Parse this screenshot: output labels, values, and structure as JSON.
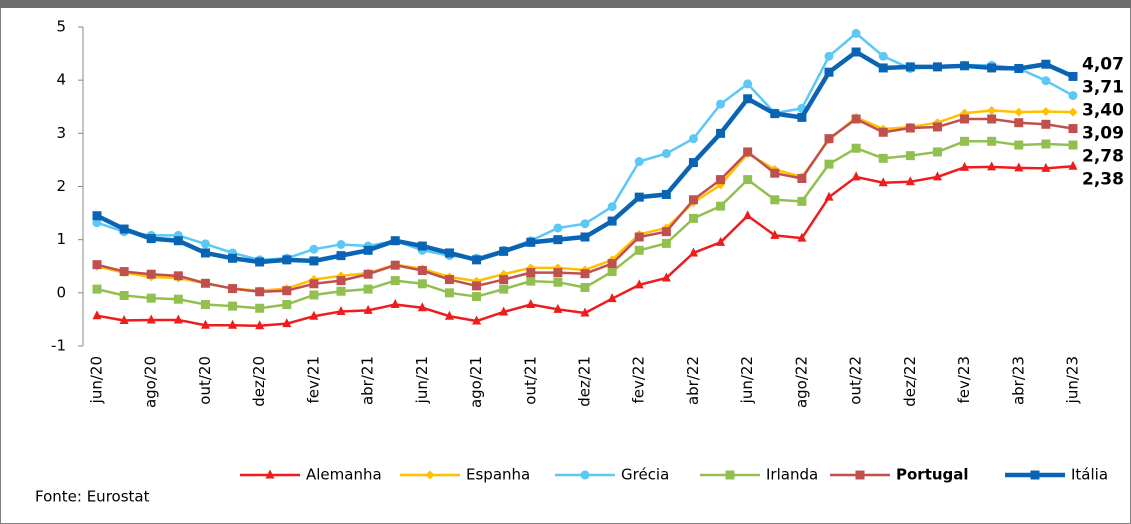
{
  "chart_data": {
    "type": "line",
    "source": "Fonte:  Eurostat",
    "categories": [
      "jun/20",
      null,
      "ago/20",
      null,
      "out/20",
      null,
      "dez/20",
      null,
      "fev/21",
      null,
      "abr/21",
      null,
      "jun/21",
      null,
      "ago/21",
      null,
      "out/21",
      null,
      "dez/21",
      null,
      "fev/22",
      null,
      "abr/22",
      null,
      "jun/22",
      null,
      "ago/22",
      null,
      "out/22",
      null,
      "dez/22",
      null,
      "fev/23",
      null,
      "abr/23",
      null,
      "jun/23"
    ],
    "ylim": [
      -1,
      5
    ],
    "yticks": [
      -1,
      0,
      1,
      2,
      3,
      4,
      5
    ],
    "series": [
      {
        "name": "Alemanha",
        "color": "#ee1c1c",
        "marker": "triangle",
        "line_width": 2.5,
        "values": [
          -0.43,
          -0.52,
          -0.51,
          -0.51,
          -0.61,
          -0.61,
          -0.62,
          -0.58,
          -0.44,
          -0.35,
          -0.33,
          -0.22,
          -0.28,
          -0.44,
          -0.53,
          -0.36,
          -0.22,
          -0.31,
          -0.38,
          -0.11,
          0.15,
          0.28,
          0.75,
          0.95,
          1.45,
          1.08,
          1.03,
          1.8,
          2.18,
          2.07,
          2.09,
          2.18,
          2.36,
          2.37,
          2.35,
          2.34,
          2.38
        ],
        "value_labels": [
          null,
          null,
          null,
          null,
          null,
          null,
          null,
          null,
          null,
          null,
          null,
          null,
          null,
          null,
          null,
          null,
          null,
          null,
          null,
          null,
          null,
          null,
          null,
          null,
          null,
          null,
          null,
          null,
          null,
          null,
          null,
          null,
          null,
          null,
          null,
          null,
          "2,38"
        ]
      },
      {
        "name": "Espanha",
        "color": "#ffc000",
        "marker": "diamond",
        "line_width": 2.5,
        "values": [
          0.5,
          0.38,
          0.3,
          0.28,
          0.18,
          0.08,
          0.04,
          0.08,
          0.25,
          0.32,
          0.37,
          0.53,
          0.45,
          0.3,
          0.22,
          0.35,
          0.47,
          0.47,
          0.43,
          0.62,
          1.1,
          1.22,
          1.7,
          2.03,
          2.62,
          2.32,
          2.18,
          2.88,
          3.3,
          3.08,
          3.12,
          3.2,
          3.38,
          3.43,
          3.4,
          3.41,
          3.4
        ],
        "value_labels": [
          null,
          null,
          null,
          null,
          null,
          null,
          null,
          null,
          null,
          null,
          null,
          null,
          null,
          null,
          null,
          null,
          null,
          null,
          null,
          null,
          null,
          null,
          null,
          null,
          null,
          null,
          null,
          null,
          null,
          null,
          null,
          null,
          null,
          null,
          null,
          null,
          "3,40"
        ]
      },
      {
        "name": "Grécia",
        "color": "#5bc8f5",
        "marker": "circle",
        "line_width": 2.5,
        "values": [
          1.32,
          1.15,
          1.08,
          1.08,
          0.92,
          0.75,
          0.62,
          0.65,
          0.82,
          0.91,
          0.88,
          0.98,
          0.8,
          0.7,
          0.65,
          0.8,
          0.98,
          1.22,
          1.3,
          1.62,
          2.47,
          2.62,
          2.9,
          3.55,
          3.93,
          3.38,
          3.47,
          4.45,
          4.88,
          4.45,
          4.22,
          4.25,
          4.28,
          4.28,
          4.22,
          3.99,
          3.71
        ],
        "value_labels": [
          null,
          null,
          null,
          null,
          null,
          null,
          null,
          null,
          null,
          null,
          null,
          null,
          null,
          null,
          null,
          null,
          null,
          null,
          null,
          null,
          null,
          null,
          null,
          null,
          null,
          null,
          null,
          null,
          null,
          null,
          null,
          null,
          null,
          null,
          null,
          null,
          "3,71"
        ]
      },
      {
        "name": "Irlanda",
        "color": "#92c050",
        "marker": "square",
        "line_width": 2.5,
        "values": [
          0.07,
          -0.05,
          -0.1,
          -0.12,
          -0.22,
          -0.25,
          -0.29,
          -0.22,
          -0.04,
          0.03,
          0.07,
          0.23,
          0.17,
          0.0,
          -0.07,
          0.07,
          0.22,
          0.2,
          0.1,
          0.4,
          0.8,
          0.93,
          1.4,
          1.63,
          2.13,
          1.75,
          1.72,
          2.42,
          2.72,
          2.53,
          2.58,
          2.65,
          2.85,
          2.85,
          2.78,
          2.8,
          2.78
        ],
        "value_labels": [
          null,
          null,
          null,
          null,
          null,
          null,
          null,
          null,
          null,
          null,
          null,
          null,
          null,
          null,
          null,
          null,
          null,
          null,
          null,
          null,
          null,
          null,
          null,
          null,
          null,
          null,
          null,
          null,
          null,
          null,
          null,
          null,
          null,
          null,
          null,
          null,
          "2,78"
        ]
      },
      {
        "name": "Portugal",
        "color": "#c0504d",
        "marker": "square",
        "line_width": 2.5,
        "bold": true,
        "values": [
          0.53,
          0.4,
          0.35,
          0.32,
          0.18,
          0.08,
          0.02,
          0.04,
          0.17,
          0.23,
          0.35,
          0.52,
          0.42,
          0.25,
          0.13,
          0.25,
          0.38,
          0.38,
          0.36,
          0.55,
          1.05,
          1.15,
          1.75,
          2.13,
          2.65,
          2.25,
          2.15,
          2.9,
          3.27,
          3.02,
          3.1,
          3.12,
          3.27,
          3.27,
          3.2,
          3.17,
          3.09
        ],
        "value_labels": [
          null,
          null,
          null,
          null,
          null,
          null,
          null,
          null,
          null,
          null,
          null,
          null,
          null,
          null,
          null,
          null,
          null,
          null,
          null,
          null,
          null,
          null,
          null,
          null,
          null,
          null,
          null,
          null,
          null,
          null,
          null,
          null,
          null,
          null,
          null,
          null,
          "3,09"
        ]
      },
      {
        "name": "Itália",
        "color": "#0a64b4",
        "marker": "square",
        "line_width": 4.5,
        "values": [
          1.45,
          1.2,
          1.02,
          0.98,
          0.75,
          0.65,
          0.58,
          0.62,
          0.6,
          0.7,
          0.8,
          0.98,
          0.88,
          0.75,
          0.62,
          0.78,
          0.95,
          1.0,
          1.05,
          1.35,
          1.8,
          1.85,
          2.45,
          3.0,
          3.65,
          3.37,
          3.3,
          4.15,
          4.53,
          4.23,
          4.25,
          4.25,
          4.27,
          4.23,
          4.22,
          4.3,
          4.07
        ],
        "value_labels": [
          null,
          null,
          null,
          null,
          null,
          null,
          null,
          null,
          null,
          null,
          null,
          null,
          null,
          null,
          null,
          null,
          null,
          null,
          null,
          null,
          null,
          null,
          null,
          null,
          null,
          null,
          null,
          null,
          null,
          null,
          null,
          null,
          null,
          null,
          null,
          null,
          "4,07"
        ]
      }
    ]
  }
}
